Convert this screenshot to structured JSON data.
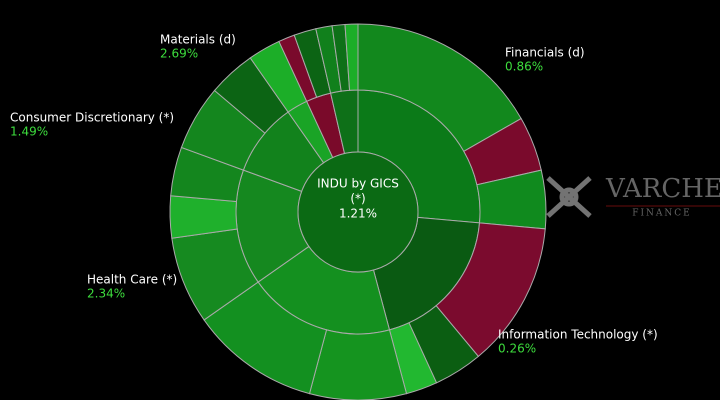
{
  "chart_data": {
    "type": "sunburst",
    "center": {
      "title": "INDU by GICS",
      "status": "(*)",
      "value": 1.21,
      "value_label": "1.21%"
    },
    "sectors": [
      {
        "name": "Financials (d)",
        "change": 0.86,
        "change_label": "0.86%",
        "weight": 26.4,
        "color": "#0b7a18",
        "children": [
          {
            "weight": 16.7,
            "color": "#12881d"
          },
          {
            "weight": 4.7,
            "color": "#7a0a2c"
          },
          {
            "weight": 5.0,
            "color": "#108a1e"
          }
        ]
      },
      {
        "name": "Information Technology (*)",
        "change": 0.26,
        "change_label": "0.26%",
        "weight": 19.4,
        "color": "#0a5a12",
        "children": [
          {
            "weight": 12.5,
            "color": "#7b0b2e"
          },
          {
            "weight": 4.2,
            "color": "#0b5e12"
          },
          {
            "weight": 2.7,
            "color": "#22b830"
          }
        ]
      },
      {
        "name": null,
        "change": null,
        "change_label": null,
        "weight": 19.4,
        "color": "#14901f",
        "children": [
          {
            "weight": 8.3,
            "color": "#15941f"
          },
          {
            "weight": 11.1,
            "color": "#139020"
          }
        ]
      },
      {
        "name": "Health Care (*)",
        "change": 2.34,
        "change_label": "2.34%",
        "weight": 15.3,
        "color": "#15881f",
        "children": [
          {
            "weight": 7.5,
            "color": "#168a20"
          },
          {
            "weight": 3.6,
            "color": "#1fb02c"
          },
          {
            "weight": 4.2,
            "color": "#14861e"
          }
        ]
      },
      {
        "name": "Consumer Discretionary (*)",
        "change": 1.49,
        "change_label": "1.49%",
        "weight": 9.7,
        "color": "#12821c",
        "children": [
          {
            "weight": 5.6,
            "color": "#14861e"
          },
          {
            "weight": 4.1,
            "color": "#0c6414"
          }
        ]
      },
      {
        "name": "Materials (d)",
        "change": 2.69,
        "change_label": "2.69%",
        "weight": 2.8,
        "color": "#1aa426",
        "children": [
          {
            "weight": 2.8,
            "color": "#1cae28"
          }
        ]
      },
      {
        "name": null,
        "change": null,
        "change_label": null,
        "weight": 3.3,
        "color": "#7a0a2a",
        "children": [
          {
            "weight": 1.4,
            "color": "#7a0a2c"
          },
          {
            "weight": 1.9,
            "color": "#0c6414"
          }
        ]
      },
      {
        "name": null,
        "change": null,
        "change_label": null,
        "weight": 3.6,
        "color": "#0e7018",
        "children": [
          {
            "weight": 1.4,
            "color": "#11801c"
          },
          {
            "weight": 1.1,
            "color": "#0e7018"
          },
          {
            "weight": 1.1,
            "color": "#1cae28"
          }
        ]
      }
    ]
  },
  "watermark": {
    "title": "VARCHEV",
    "subtitle": "FINANCE"
  }
}
